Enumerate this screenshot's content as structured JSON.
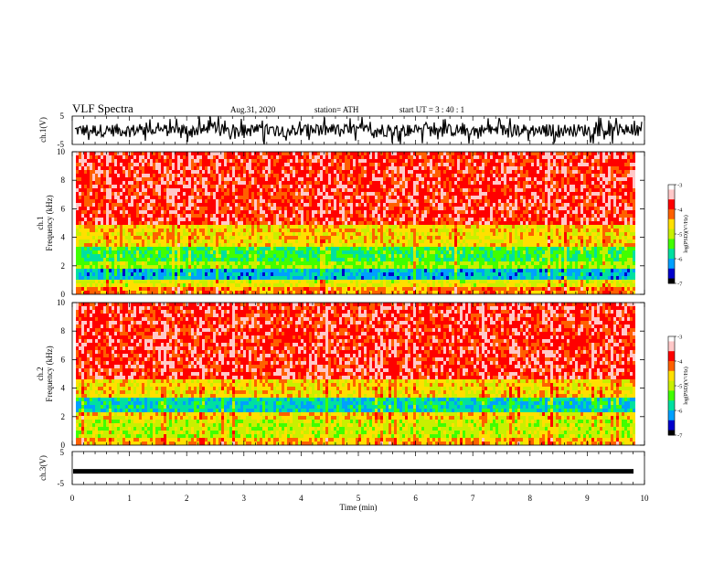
{
  "header": {
    "title": "VLF Spectra",
    "date": "Aug.31, 2020",
    "station": "station= ATH",
    "start": "start  UT  =   3  : 40 : 1"
  },
  "colors": {
    "spectrogram": [
      "#0000cc",
      "#00a0ff",
      "#00e0a0",
      "#40ff00",
      "#c8f000",
      "#ffe000",
      "#ff6000",
      "#ff0000",
      "#ffc8c8"
    ],
    "waveform": "#000000"
  },
  "chart_data": [
    {
      "type": "line",
      "name": "ch1-waveform",
      "ylabel": "ch.1(V)",
      "ylim": [
        -5,
        5
      ],
      "yticks": [
        "5",
        "-5"
      ],
      "xlim": [
        0,
        10
      ],
      "description_of_signal": "noise, amplitude about ±2 V with spikes reaching ±5 V"
    },
    {
      "type": "heatmap",
      "name": "ch1-spectrogram",
      "ylabel": "ch.1\nFrequency (kHz)",
      "ylim": [
        0,
        10
      ],
      "yticks": [
        "0",
        "2",
        "4",
        "6",
        "8",
        "10"
      ],
      "xlim": [
        0,
        10
      ],
      "colorbar": {
        "label": "log(PSD)(V²/Hz)",
        "range": [
          -7,
          -3
        ],
        "ticks": [
          "-3",
          "-4",
          "-5",
          "-6",
          "-7"
        ]
      },
      "bands": [
        {
          "from_khz": 0,
          "to_khz": 0.6,
          "level": -4.2
        },
        {
          "from_khz": 0.6,
          "to_khz": 1.0,
          "level": -4.8
        },
        {
          "from_khz": 1.0,
          "to_khz": 1.8,
          "level": -6.2
        },
        {
          "from_khz": 1.8,
          "to_khz": 2.4,
          "level": -5.2
        },
        {
          "from_khz": 2.4,
          "to_khz": 3.4,
          "level": -5.6
        },
        {
          "from_khz": 3.4,
          "to_khz": 4.8,
          "level": -4.6
        },
        {
          "from_khz": 4.8,
          "to_khz": 10,
          "level": -3.7
        }
      ]
    },
    {
      "type": "heatmap",
      "name": "ch2-spectrogram",
      "ylabel": "ch.2\nFrequency (kHz)",
      "ylim": [
        0,
        10
      ],
      "yticks": [
        "0",
        "2",
        "4",
        "6",
        "8",
        "10"
      ],
      "xlim": [
        0,
        10
      ],
      "colorbar": {
        "label": "log(PSD)(V²/Hz)",
        "range": [
          -7,
          -3
        ],
        "ticks": [
          "-3",
          "-4",
          "-5",
          "-6",
          "-7"
        ]
      },
      "bands": [
        {
          "from_khz": 0,
          "to_khz": 0.6,
          "level": -4.4
        },
        {
          "from_khz": 0.6,
          "to_khz": 1.8,
          "level": -5.0
        },
        {
          "from_khz": 1.8,
          "to_khz": 2.2,
          "level": -4.6
        },
        {
          "from_khz": 2.2,
          "to_khz": 3.4,
          "level": -6.0
        },
        {
          "from_khz": 3.4,
          "to_khz": 4.6,
          "level": -4.6
        },
        {
          "from_khz": 4.6,
          "to_khz": 10,
          "level": -3.7
        }
      ]
    },
    {
      "type": "line",
      "name": "ch3-waveform",
      "ylabel": "ch.3(V)",
      "ylim": [
        -5,
        5
      ],
      "yticks": [
        "5",
        "-5"
      ],
      "xlim": [
        0,
        10
      ],
      "constant_value": -1
    }
  ],
  "xaxis": {
    "label": "Time  (min)",
    "ticks": [
      "0",
      "1",
      "2",
      "3",
      "4",
      "5",
      "6",
      "7",
      "8",
      "9",
      "10"
    ]
  }
}
